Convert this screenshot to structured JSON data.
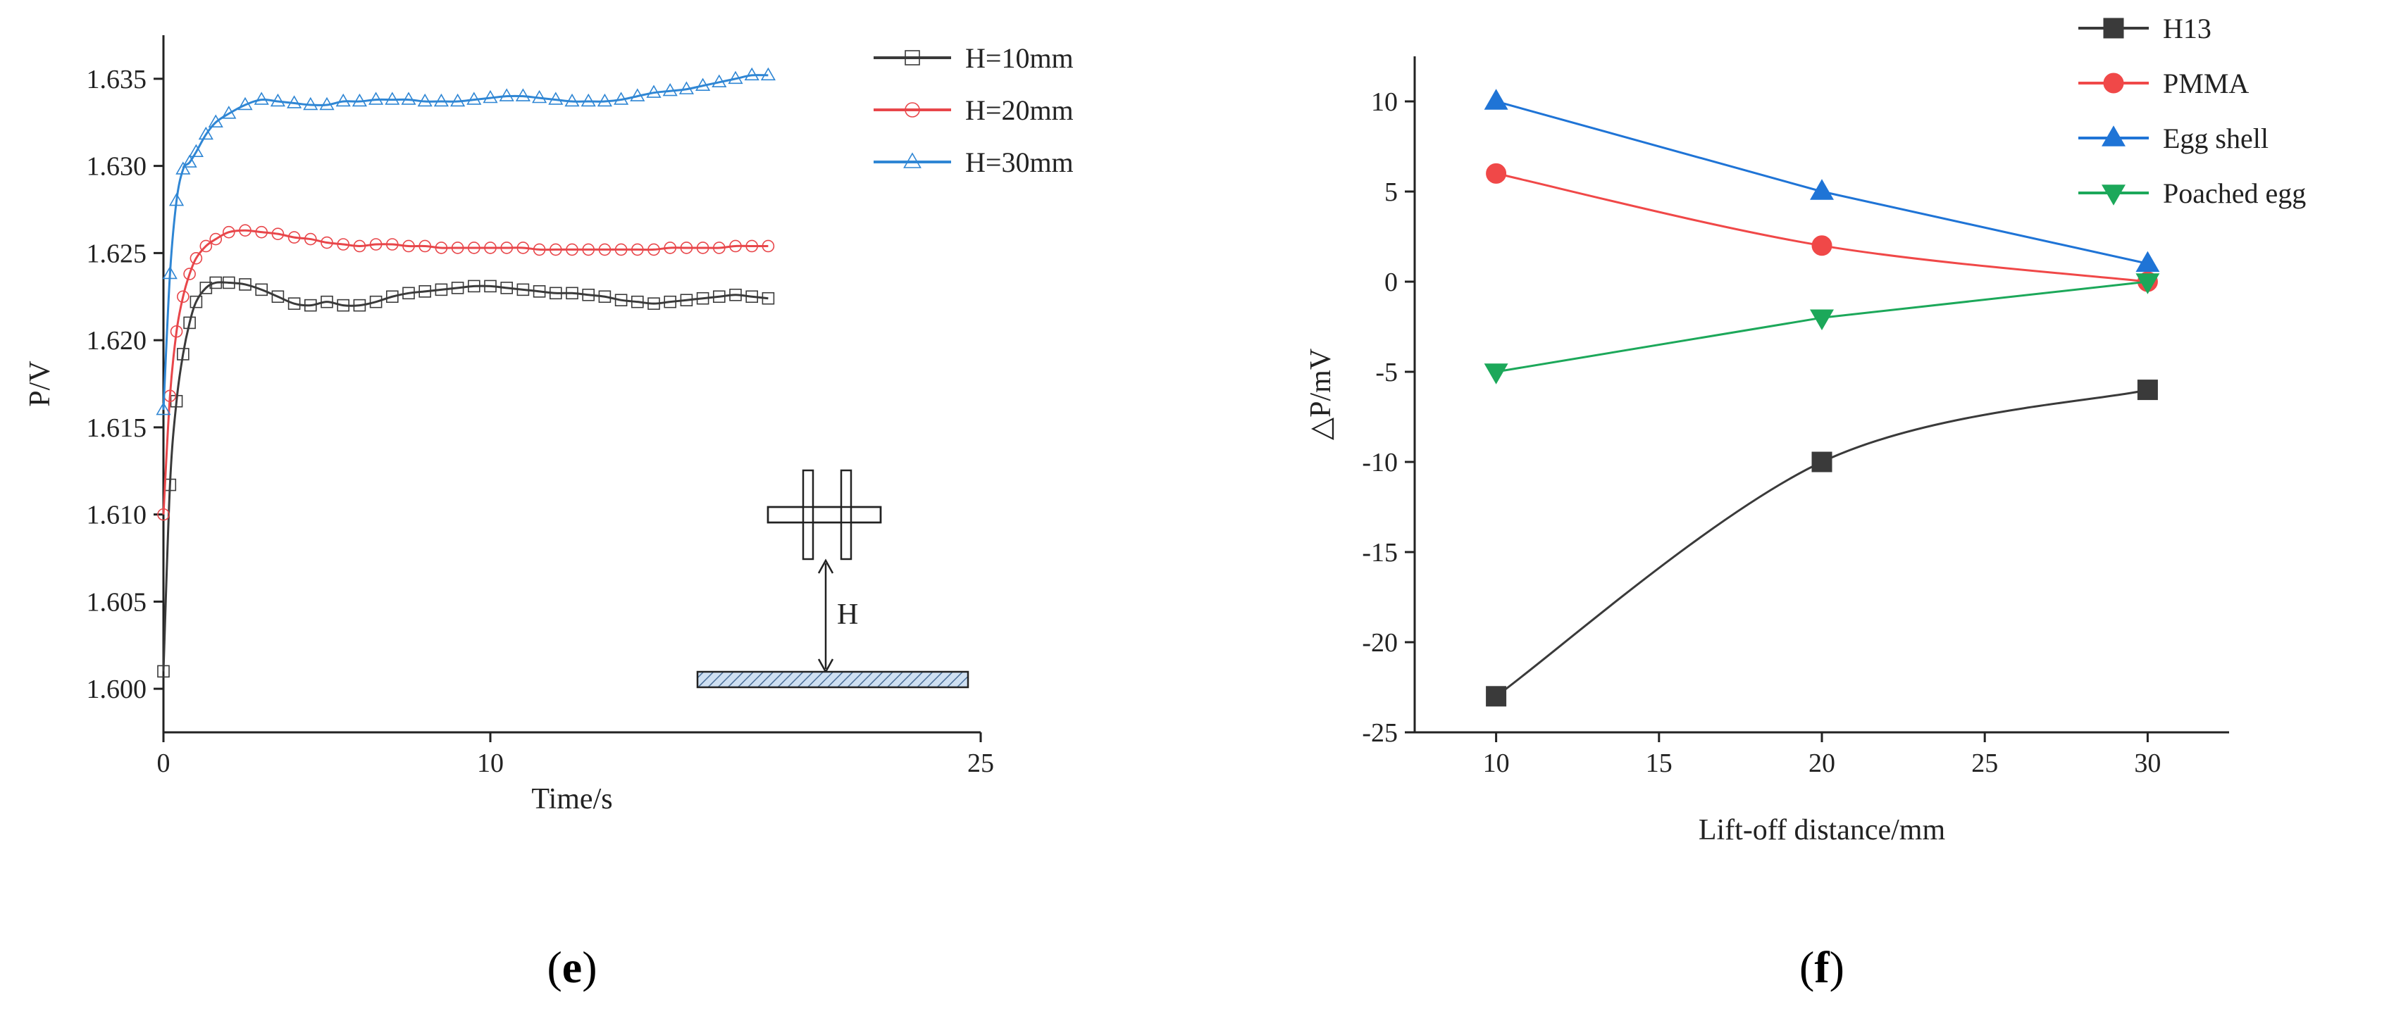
{
  "chart_data": [
    {
      "type": "line",
      "panel_label": "e",
      "xlabel": "Time/s",
      "ylabel": "P/V",
      "xlim": [
        0,
        25
      ],
      "ylim": [
        1.5975,
        1.6375
      ],
      "x_ticks": [
        0,
        10,
        25
      ],
      "x_tick_labels": [
        "0",
        "10",
        "25"
      ],
      "y_ticks": [
        1.6,
        1.605,
        1.61,
        1.615,
        1.62,
        1.625,
        1.63,
        1.635
      ],
      "y_tick_labels": [
        "1.600",
        "1.605",
        "1.610",
        "1.615",
        "1.620",
        "1.625",
        "1.630",
        "1.635"
      ],
      "legend_position": "top-right",
      "series": [
        {
          "name": "H=10mm",
          "color": "#3a3a3a",
          "marker": "square",
          "x": [
            0,
            0.2,
            0.4,
            0.6,
            0.8,
            1.0,
            1.3,
            1.6,
            2.0,
            2.5,
            3.0,
            3.5,
            4.0,
            4.5,
            5.0,
            5.5,
            6.0,
            6.5,
            7.0,
            7.5,
            8.0,
            8.5,
            9.0,
            9.5,
            10.0,
            10.5,
            11.0,
            11.5,
            12.0,
            12.5,
            13.0,
            13.5,
            14.0,
            14.5,
            15.0,
            15.5,
            16.0,
            16.5,
            17.0,
            17.5,
            18.0,
            18.5
          ],
          "y": [
            1.601,
            1.6117,
            1.6165,
            1.6192,
            1.621,
            1.6222,
            1.623,
            1.6233,
            1.6233,
            1.6232,
            1.6229,
            1.6225,
            1.6221,
            1.622,
            1.6222,
            1.622,
            1.622,
            1.6222,
            1.6225,
            1.6227,
            1.6228,
            1.6229,
            1.623,
            1.6231,
            1.6231,
            1.623,
            1.6229,
            1.6228,
            1.6227,
            1.6227,
            1.6226,
            1.6225,
            1.6223,
            1.6222,
            1.6221,
            1.6222,
            1.6223,
            1.6224,
            1.6225,
            1.6226,
            1.6225,
            1.6224
          ]
        },
        {
          "name": "H=20mm",
          "color": "#e8464a",
          "marker": "circle",
          "x": [
            0,
            0.2,
            0.4,
            0.6,
            0.8,
            1.0,
            1.3,
            1.6,
            2.0,
            2.5,
            3.0,
            3.5,
            4.0,
            4.5,
            5.0,
            5.5,
            6.0,
            6.5,
            7.0,
            7.5,
            8.0,
            8.5,
            9.0,
            9.5,
            10.0,
            10.5,
            11.0,
            11.5,
            12.0,
            12.5,
            13.0,
            13.5,
            14.0,
            14.5,
            15.0,
            15.5,
            16.0,
            16.5,
            17.0,
            17.5,
            18.0,
            18.5
          ],
          "y": [
            1.61,
            1.6168,
            1.6205,
            1.6225,
            1.6238,
            1.6247,
            1.6254,
            1.6258,
            1.6262,
            1.6263,
            1.6262,
            1.6261,
            1.6259,
            1.6258,
            1.6256,
            1.6255,
            1.6254,
            1.6255,
            1.6255,
            1.6254,
            1.6254,
            1.6253,
            1.6253,
            1.6253,
            1.6253,
            1.6253,
            1.6253,
            1.6252,
            1.6252,
            1.6252,
            1.6252,
            1.6252,
            1.6252,
            1.6252,
            1.6252,
            1.6253,
            1.6253,
            1.6253,
            1.6253,
            1.6254,
            1.6254,
            1.6254
          ]
        },
        {
          "name": "H=30mm",
          "color": "#2f86d4",
          "marker": "triangle",
          "x": [
            0,
            0.2,
            0.4,
            0.6,
            0.8,
            1.0,
            1.3,
            1.6,
            2.0,
            2.5,
            3.0,
            3.5,
            4.0,
            4.5,
            5.0,
            5.5,
            6.0,
            6.5,
            7.0,
            7.5,
            8.0,
            8.5,
            9.0,
            9.5,
            10.0,
            10.5,
            11.0,
            11.5,
            12.0,
            12.5,
            13.0,
            13.5,
            14.0,
            14.5,
            15.0,
            15.5,
            16.0,
            16.5,
            17.0,
            17.5,
            18.0,
            18.5
          ],
          "y": [
            1.616,
            1.6238,
            1.628,
            1.6298,
            1.6302,
            1.6308,
            1.6318,
            1.6325,
            1.633,
            1.6335,
            1.6338,
            1.6337,
            1.6336,
            1.6335,
            1.6335,
            1.6337,
            1.6337,
            1.6338,
            1.6338,
            1.6338,
            1.6337,
            1.6337,
            1.6337,
            1.6338,
            1.6339,
            1.634,
            1.634,
            1.6339,
            1.6338,
            1.6337,
            1.6337,
            1.6337,
            1.6338,
            1.634,
            1.6342,
            1.6343,
            1.6344,
            1.6346,
            1.6348,
            1.635,
            1.6352,
            1.6352
          ]
        }
      ],
      "inset_label": "H"
    },
    {
      "type": "line",
      "panel_label": "f",
      "xlabel": "Lift-off distance/mm",
      "ylabel": "△P/mV",
      "xlim": [
        7.5,
        32.5
      ],
      "ylim": [
        -25,
        12.5
      ],
      "x_ticks": [
        10,
        15,
        20,
        25,
        30
      ],
      "x_tick_labels": [
        "10",
        "15",
        "20",
        "25",
        "30"
      ],
      "y_ticks": [
        -25,
        -20,
        -15,
        -10,
        -5,
        0,
        5,
        10
      ],
      "y_tick_labels": [
        "-25",
        "-20",
        "-15",
        "-10",
        "-5",
        "0",
        "5",
        "10"
      ],
      "legend_position": "top-right",
      "series": [
        {
          "name": "H13",
          "color": "#3a3a3a",
          "marker": "square",
          "smooth": true,
          "x": [
            10,
            20,
            30
          ],
          "y": [
            -23,
            -10,
            -6
          ]
        },
        {
          "name": "PMMA",
          "color": "#f04848",
          "marker": "circle",
          "smooth": true,
          "x": [
            10,
            20,
            30
          ],
          "y": [
            6,
            2,
            0
          ]
        },
        {
          "name": "Egg shell",
          "color": "#1f74d6",
          "marker": "triangle",
          "smooth": false,
          "x": [
            10,
            20,
            30
          ],
          "y": [
            10,
            5,
            1
          ]
        },
        {
          "name": "Poached egg",
          "color": "#1ca85a",
          "marker": "triangle-down",
          "smooth": false,
          "x": [
            10,
            20,
            30
          ],
          "y": [
            -5,
            -2,
            0
          ]
        }
      ]
    }
  ]
}
